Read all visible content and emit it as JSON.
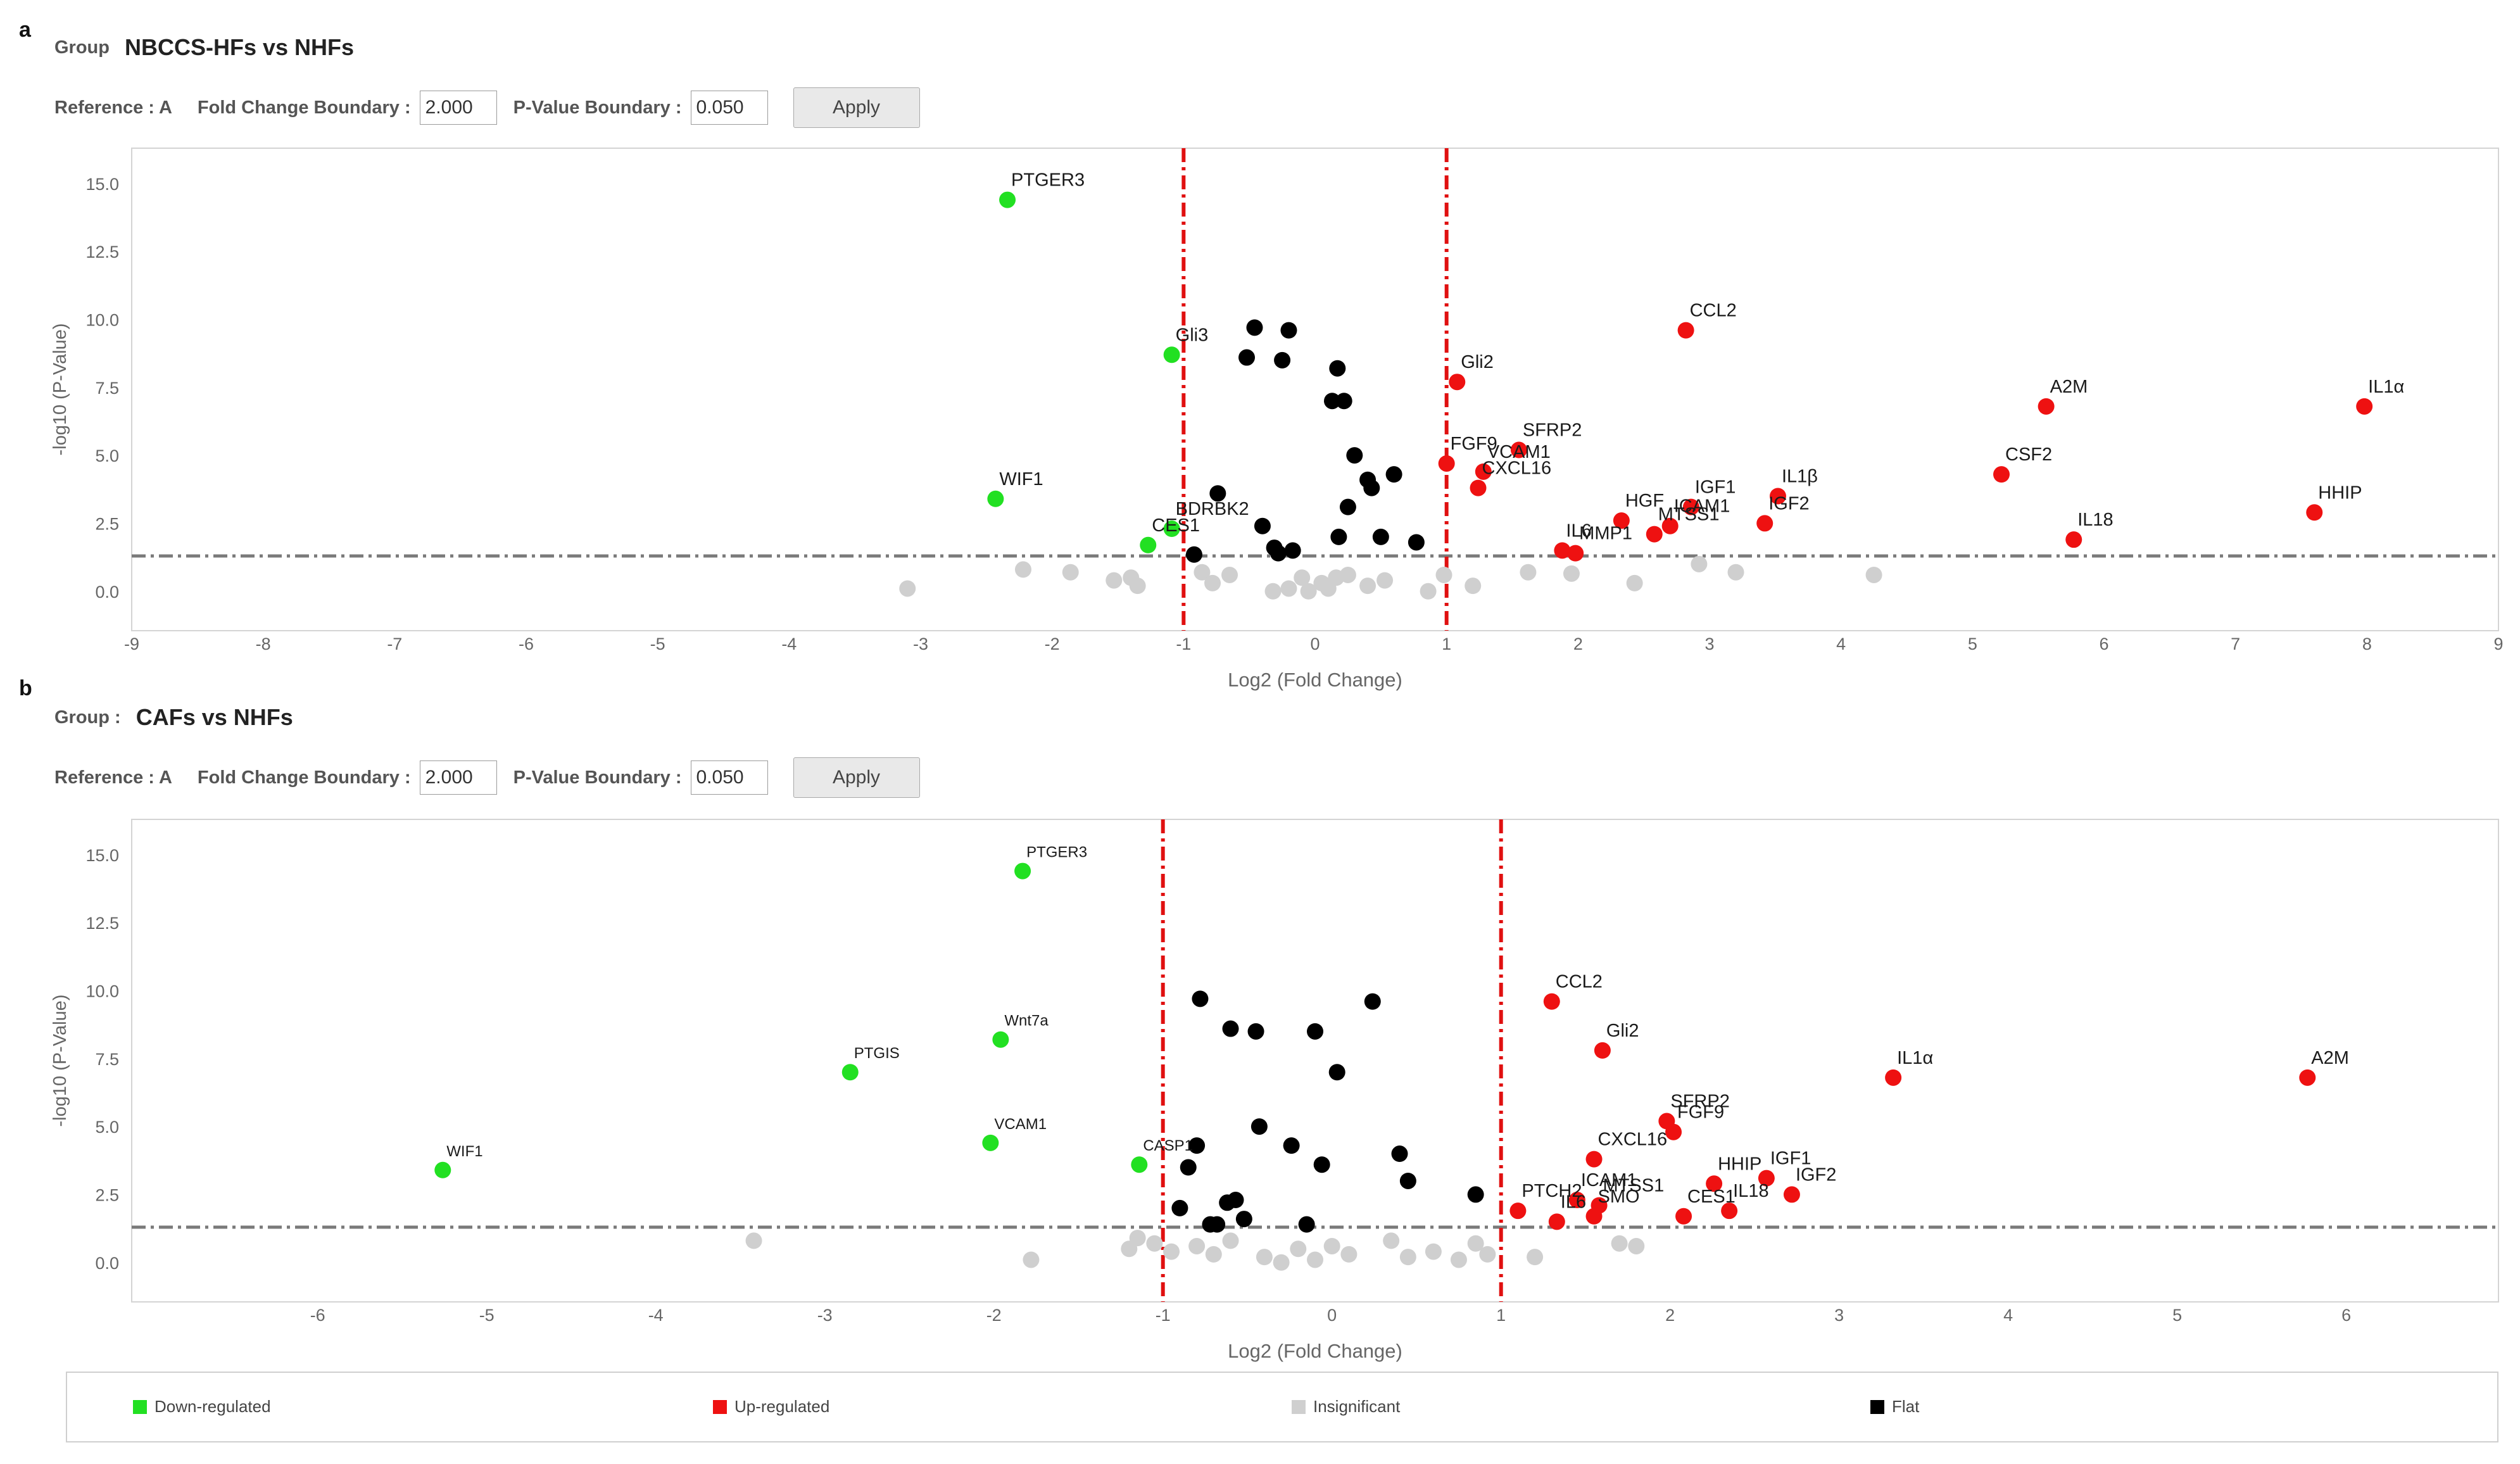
{
  "panels": [
    {
      "letter": "a",
      "group_label": "Group",
      "group_value": "NBCCS-HFs vs NHFs",
      "reference_label": "Reference : A",
      "fold_label": "Fold Change Boundary :",
      "fold_value": "2.000",
      "pvalue_label": "P-Value Boundary :",
      "pvalue_value": "0.050",
      "apply_label": "Apply"
    },
    {
      "letter": "b",
      "group_label": "Group :",
      "group_value": "CAFs vs NHFs",
      "reference_label": "Reference : A",
      "fold_label": "Fold Change Boundary :",
      "fold_value": "2.000",
      "pvalue_label": "P-Value Boundary :",
      "pvalue_value": "0.050",
      "apply_label": "Apply"
    }
  ],
  "legend": {
    "down": "Down-regulated",
    "up": "Up-regulated",
    "insig": "Insignificant",
    "flat": "Flat"
  },
  "colors": {
    "down": "#22e022",
    "up": "#ee1111",
    "insig": "#cfcfcf",
    "flat": "#000000",
    "boundary": "#e01010",
    "threshold": "#7a7a7a",
    "axis_text": "#666666"
  },
  "chart_data": [
    {
      "type": "scatter",
      "title": "NBCCS-HFs vs NHFs",
      "xlabel": "Log2 (Fold Change)",
      "ylabel": "-log10 (P-Value)",
      "xlim": [
        -9,
        9
      ],
      "ylim": [
        -1.45,
        16.3
      ],
      "xticks": [
        -9,
        -8,
        -7,
        -6,
        -5,
        -4,
        -3,
        -2,
        -1,
        0,
        1,
        2,
        3,
        4,
        5,
        6,
        7,
        8,
        9
      ],
      "yticks": [
        0,
        2.5,
        5,
        7.5,
        10,
        12.5,
        15
      ],
      "ytick_labels": [
        "0.0",
        "2.5",
        "5.0",
        "7.5",
        "10.0",
        "12.5",
        "15.0"
      ],
      "fold_boundaries": [
        -1,
        1
      ],
      "pvalue_threshold": 1.3,
      "points": [
        {
          "x": -2.34,
          "y": 14.4,
          "label": "PTGER3",
          "status": "down"
        },
        {
          "x": -1.09,
          "y": 8.7,
          "label": "Gli3",
          "status": "down"
        },
        {
          "x": -2.43,
          "y": 3.4,
          "label": "WIF1",
          "status": "down"
        },
        {
          "x": -1.09,
          "y": 2.3,
          "label": "BDRBK2",
          "status": "down"
        },
        {
          "x": -1.27,
          "y": 1.7,
          "label": "CES1",
          "status": "down"
        },
        {
          "x": 2.82,
          "y": 9.6,
          "label": "CCL2",
          "status": "up"
        },
        {
          "x": 1.08,
          "y": 7.7,
          "label": "Gli2",
          "status": "up"
        },
        {
          "x": 5.56,
          "y": 6.8,
          "label": "A2M",
          "status": "up"
        },
        {
          "x": 7.98,
          "y": 6.8,
          "label": "IL1α",
          "status": "up"
        },
        {
          "x": 1.55,
          "y": 5.2,
          "label": "SFRP2",
          "status": "up"
        },
        {
          "x": 1.0,
          "y": 4.7,
          "label": "FGF9",
          "status": "up"
        },
        {
          "x": 1.28,
          "y": 4.4,
          "label": "VCAM1",
          "status": "up"
        },
        {
          "x": 1.24,
          "y": 3.8,
          "label": "CXCL16",
          "status": "up"
        },
        {
          "x": 5.22,
          "y": 4.3,
          "label": "CSF2",
          "status": "up"
        },
        {
          "x": 3.52,
          "y": 3.5,
          "label": "IL1β",
          "status": "up"
        },
        {
          "x": 2.86,
          "y": 3.1,
          "label": "IGF1",
          "status": "up"
        },
        {
          "x": 2.33,
          "y": 2.6,
          "label": "HGF",
          "status": "up"
        },
        {
          "x": 7.6,
          "y": 2.9,
          "label": "HHIP",
          "status": "up"
        },
        {
          "x": 2.7,
          "y": 2.4,
          "label": "ICAM1",
          "status": "up"
        },
        {
          "x": 3.42,
          "y": 2.5,
          "label": "IGF2",
          "status": "up"
        },
        {
          "x": 2.58,
          "y": 2.1,
          "label": "MTSS1",
          "status": "up"
        },
        {
          "x": 5.77,
          "y": 1.9,
          "label": "IL18",
          "status": "up"
        },
        {
          "x": 1.88,
          "y": 1.5,
          "label": "IL6",
          "status": "up"
        },
        {
          "x": 1.98,
          "y": 1.4,
          "label": "MMP1",
          "status": "up"
        },
        {
          "x": -0.46,
          "y": 9.7,
          "label": "",
          "status": "flat"
        },
        {
          "x": -0.2,
          "y": 9.6,
          "label": "",
          "status": "flat"
        },
        {
          "x": -0.52,
          "y": 8.6,
          "label": "",
          "status": "flat"
        },
        {
          "x": -0.25,
          "y": 8.5,
          "label": "",
          "status": "flat"
        },
        {
          "x": 0.17,
          "y": 8.2,
          "label": "",
          "status": "flat"
        },
        {
          "x": 0.13,
          "y": 7.0,
          "label": "",
          "status": "flat"
        },
        {
          "x": 0.22,
          "y": 7.0,
          "label": "",
          "status": "flat"
        },
        {
          "x": 0.3,
          "y": 5.0,
          "label": "",
          "status": "flat"
        },
        {
          "x": 0.6,
          "y": 4.3,
          "label": "",
          "status": "flat"
        },
        {
          "x": 0.4,
          "y": 4.1,
          "label": "",
          "status": "flat"
        },
        {
          "x": 0.43,
          "y": 3.8,
          "label": "",
          "status": "flat"
        },
        {
          "x": -0.74,
          "y": 3.6,
          "label": "",
          "status": "flat"
        },
        {
          "x": 0.25,
          "y": 3.1,
          "label": "",
          "status": "flat"
        },
        {
          "x": -0.4,
          "y": 2.4,
          "label": "",
          "status": "flat"
        },
        {
          "x": 0.18,
          "y": 2.0,
          "label": "",
          "status": "flat"
        },
        {
          "x": 0.5,
          "y": 2.0,
          "label": "",
          "status": "flat"
        },
        {
          "x": 0.77,
          "y": 1.8,
          "label": "",
          "status": "flat"
        },
        {
          "x": -0.31,
          "y": 1.6,
          "label": "",
          "status": "flat"
        },
        {
          "x": -0.17,
          "y": 1.5,
          "label": "",
          "status": "flat"
        },
        {
          "x": -0.92,
          "y": 1.35,
          "label": "",
          "status": "flat"
        },
        {
          "x": -0.28,
          "y": 1.4,
          "label": "",
          "status": "flat"
        },
        {
          "x": -3.1,
          "y": 0.1,
          "label": "",
          "status": "insig"
        },
        {
          "x": -2.22,
          "y": 0.8,
          "label": "",
          "status": "insig"
        },
        {
          "x": -1.86,
          "y": 0.7,
          "label": "",
          "status": "insig"
        },
        {
          "x": -1.53,
          "y": 0.4,
          "label": "",
          "status": "insig"
        },
        {
          "x": -1.4,
          "y": 0.5,
          "label": "",
          "status": "insig"
        },
        {
          "x": -1.35,
          "y": 0.2,
          "label": "",
          "status": "insig"
        },
        {
          "x": -0.86,
          "y": 0.7,
          "label": "",
          "status": "insig"
        },
        {
          "x": -0.78,
          "y": 0.3,
          "label": "",
          "status": "insig"
        },
        {
          "x": -0.65,
          "y": 0.6,
          "label": "",
          "status": "insig"
        },
        {
          "x": -0.32,
          "y": 0.0,
          "label": "",
          "status": "insig"
        },
        {
          "x": -0.2,
          "y": 0.1,
          "label": "",
          "status": "insig"
        },
        {
          "x": -0.1,
          "y": 0.5,
          "label": "",
          "status": "insig"
        },
        {
          "x": -0.05,
          "y": 0.0,
          "label": "",
          "status": "insig"
        },
        {
          "x": 0.05,
          "y": 0.3,
          "label": "",
          "status": "insig"
        },
        {
          "x": 0.1,
          "y": 0.1,
          "label": "",
          "status": "insig"
        },
        {
          "x": 0.16,
          "y": 0.5,
          "label": "",
          "status": "insig"
        },
        {
          "x": 0.25,
          "y": 0.6,
          "label": "",
          "status": "insig"
        },
        {
          "x": 0.4,
          "y": 0.2,
          "label": "",
          "status": "insig"
        },
        {
          "x": 0.53,
          "y": 0.4,
          "label": "",
          "status": "insig"
        },
        {
          "x": 0.86,
          "y": 0.0,
          "label": "",
          "status": "insig"
        },
        {
          "x": 0.98,
          "y": 0.6,
          "label": "",
          "status": "insig"
        },
        {
          "x": 1.2,
          "y": 0.2,
          "label": "",
          "status": "insig"
        },
        {
          "x": 1.62,
          "y": 0.7,
          "label": "",
          "status": "insig"
        },
        {
          "x": 1.95,
          "y": 0.65,
          "label": "",
          "status": "insig"
        },
        {
          "x": 2.43,
          "y": 0.3,
          "label": "",
          "status": "insig"
        },
        {
          "x": 2.92,
          "y": 1.0,
          "label": "",
          "status": "insig"
        },
        {
          "x": 3.2,
          "y": 0.7,
          "label": "",
          "status": "insig"
        },
        {
          "x": 4.25,
          "y": 0.6,
          "label": "",
          "status": "insig"
        }
      ]
    },
    {
      "type": "scatter",
      "title": "CAFs vs NHFs",
      "xlabel": "Log2 (Fold Change)",
      "ylabel": "-log10 (P-Value)",
      "xlim": [
        -7.1,
        6.9
      ],
      "ylim": [
        -1.45,
        16.3
      ],
      "xticks": [
        -6,
        -5,
        -4,
        -3,
        -2,
        -1,
        0,
        1,
        2,
        3,
        4,
        5,
        6
      ],
      "yticks": [
        0,
        2.5,
        5,
        7.5,
        10,
        12.5,
        15
      ],
      "ytick_labels": [
        "0.0",
        "2.5",
        "5.0",
        "7.5",
        "10.0",
        "12.5",
        "15.0"
      ],
      "fold_boundaries": [
        -1,
        1
      ],
      "pvalue_threshold": 1.3,
      "points": [
        {
          "x": -1.83,
          "y": 14.4,
          "label": "PTGER3",
          "status": "down"
        },
        {
          "x": -1.96,
          "y": 8.2,
          "label": "Wnt7a",
          "status": "down"
        },
        {
          "x": -2.85,
          "y": 7.0,
          "label": "PTGIS",
          "status": "down"
        },
        {
          "x": -2.02,
          "y": 4.4,
          "label": "VCAM1",
          "status": "down"
        },
        {
          "x": -5.26,
          "y": 3.4,
          "label": "WIF1",
          "status": "down"
        },
        {
          "x": -1.14,
          "y": 3.6,
          "label": "CASP1",
          "status": "down"
        },
        {
          "x": 1.3,
          "y": 9.6,
          "label": "CCL2",
          "status": "up"
        },
        {
          "x": 1.6,
          "y": 7.8,
          "label": "Gli2",
          "status": "up"
        },
        {
          "x": 3.32,
          "y": 6.8,
          "label": "IL1α",
          "status": "up"
        },
        {
          "x": 5.77,
          "y": 6.8,
          "label": "A2M",
          "status": "up"
        },
        {
          "x": 1.98,
          "y": 5.2,
          "label": "SFRP2",
          "status": "up"
        },
        {
          "x": 2.02,
          "y": 4.8,
          "label": "FGF9",
          "status": "up"
        },
        {
          "x": 1.55,
          "y": 3.8,
          "label": "CXCL16",
          "status": "up"
        },
        {
          "x": 2.26,
          "y": 2.9,
          "label": "HHIP",
          "status": "up"
        },
        {
          "x": 2.57,
          "y": 3.1,
          "label": "IGF1",
          "status": "up"
        },
        {
          "x": 2.72,
          "y": 2.5,
          "label": "IGF2",
          "status": "up"
        },
        {
          "x": 1.45,
          "y": 2.3,
          "label": "ICAM1",
          "status": "up"
        },
        {
          "x": 1.58,
          "y": 2.1,
          "label": "MTSS1",
          "status": "up"
        },
        {
          "x": 1.1,
          "y": 1.9,
          "label": "PTCH2",
          "status": "up"
        },
        {
          "x": 2.35,
          "y": 1.9,
          "label": "IL18",
          "status": "up"
        },
        {
          "x": 2.08,
          "y": 1.7,
          "label": "CES1",
          "status": "up"
        },
        {
          "x": 1.55,
          "y": 1.7,
          "label": "SMO",
          "status": "up"
        },
        {
          "x": 1.33,
          "y": 1.5,
          "label": "IL6",
          "status": "up"
        },
        {
          "x": -0.78,
          "y": 9.7,
          "label": "",
          "status": "flat"
        },
        {
          "x": 0.24,
          "y": 9.6,
          "label": "",
          "status": "flat"
        },
        {
          "x": -0.6,
          "y": 8.6,
          "label": "",
          "status": "flat"
        },
        {
          "x": -0.45,
          "y": 8.5,
          "label": "",
          "status": "flat"
        },
        {
          "x": -0.1,
          "y": 8.5,
          "label": "",
          "status": "flat"
        },
        {
          "x": 0.03,
          "y": 7.0,
          "label": "",
          "status": "flat"
        },
        {
          "x": -0.43,
          "y": 5.0,
          "label": "",
          "status": "flat"
        },
        {
          "x": -0.8,
          "y": 4.3,
          "label": "",
          "status": "flat"
        },
        {
          "x": -0.24,
          "y": 4.3,
          "label": "",
          "status": "flat"
        },
        {
          "x": 0.4,
          "y": 4.0,
          "label": "",
          "status": "flat"
        },
        {
          "x": -0.85,
          "y": 3.5,
          "label": "",
          "status": "flat"
        },
        {
          "x": -0.06,
          "y": 3.6,
          "label": "",
          "status": "flat"
        },
        {
          "x": 0.45,
          "y": 3.0,
          "label": "",
          "status": "flat"
        },
        {
          "x": 0.85,
          "y": 2.5,
          "label": "",
          "status": "flat"
        },
        {
          "x": -0.57,
          "y": 2.3,
          "label": "",
          "status": "flat"
        },
        {
          "x": -0.62,
          "y": 2.2,
          "label": "",
          "status": "flat"
        },
        {
          "x": -0.9,
          "y": 2.0,
          "label": "",
          "status": "flat"
        },
        {
          "x": -0.52,
          "y": 1.6,
          "label": "",
          "status": "flat"
        },
        {
          "x": -0.72,
          "y": 1.4,
          "label": "",
          "status": "flat"
        },
        {
          "x": -0.68,
          "y": 1.4,
          "label": "",
          "status": "flat"
        },
        {
          "x": -0.15,
          "y": 1.4,
          "label": "",
          "status": "flat"
        },
        {
          "x": -3.42,
          "y": 0.8,
          "label": "",
          "status": "insig"
        },
        {
          "x": -1.78,
          "y": 0.1,
          "label": "",
          "status": "insig"
        },
        {
          "x": -1.2,
          "y": 0.5,
          "label": "",
          "status": "insig"
        },
        {
          "x": -1.15,
          "y": 0.9,
          "label": "",
          "status": "insig"
        },
        {
          "x": -1.05,
          "y": 0.7,
          "label": "",
          "status": "insig"
        },
        {
          "x": -0.95,
          "y": 0.4,
          "label": "",
          "status": "insig"
        },
        {
          "x": -0.8,
          "y": 0.6,
          "label": "",
          "status": "insig"
        },
        {
          "x": -0.7,
          "y": 0.3,
          "label": "",
          "status": "insig"
        },
        {
          "x": -0.6,
          "y": 0.8,
          "label": "",
          "status": "insig"
        },
        {
          "x": -0.4,
          "y": 0.2,
          "label": "",
          "status": "insig"
        },
        {
          "x": -0.3,
          "y": 0.0,
          "label": "",
          "status": "insig"
        },
        {
          "x": -0.2,
          "y": 0.5,
          "label": "",
          "status": "insig"
        },
        {
          "x": -0.1,
          "y": 0.1,
          "label": "",
          "status": "insig"
        },
        {
          "x": 0.0,
          "y": 0.6,
          "label": "",
          "status": "insig"
        },
        {
          "x": 0.1,
          "y": 0.3,
          "label": "",
          "status": "insig"
        },
        {
          "x": 0.35,
          "y": 0.8,
          "label": "",
          "status": "insig"
        },
        {
          "x": 0.45,
          "y": 0.2,
          "label": "",
          "status": "insig"
        },
        {
          "x": 0.6,
          "y": 0.4,
          "label": "",
          "status": "insig"
        },
        {
          "x": 0.75,
          "y": 0.1,
          "label": "",
          "status": "insig"
        },
        {
          "x": 0.85,
          "y": 0.7,
          "label": "",
          "status": "insig"
        },
        {
          "x": 0.92,
          "y": 0.3,
          "label": "",
          "status": "insig"
        },
        {
          "x": 1.2,
          "y": 0.2,
          "label": "",
          "status": "insig"
        },
        {
          "x": 1.7,
          "y": 0.7,
          "label": "",
          "status": "insig"
        },
        {
          "x": 1.8,
          "y": 0.6,
          "label": "",
          "status": "insig"
        }
      ]
    }
  ]
}
